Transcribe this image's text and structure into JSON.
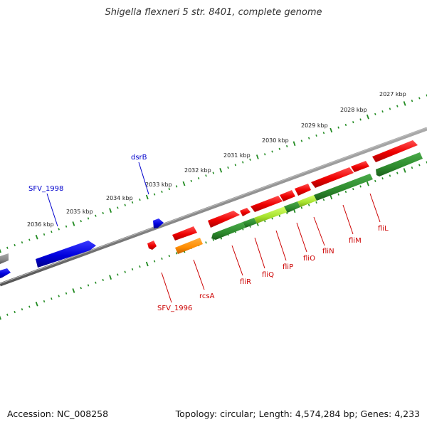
{
  "title": "Shigella flexneri 5 str. 8401, complete genome",
  "footer": {
    "accession": "Accession: NC_008258",
    "topology": "Topology: circular; Length: 4,574,284 bp; Genes: 4,233"
  },
  "colors": {
    "red": "#ee0000",
    "blue": "#0000dd",
    "orange": "#ff8c00",
    "green": "#2d8a2d",
    "lime": "#a6e22e",
    "backbone": "#808080",
    "ruler": "#228b22",
    "gene_label_red": "#cc0000",
    "gene_label_blue": "#0000cc"
  },
  "ruler_labels": [
    "2027 kbp",
    "2028 kbp",
    "2029 kbp",
    "2030 kbp",
    "2031 kbp",
    "2032 kbp",
    "2033 kbp",
    "2034 kbp",
    "2035 kbp",
    "2036 kbp"
  ],
  "gene_labels": [
    "SFV_1998",
    "dsrB",
    "SFV_1996",
    "rcsA",
    "fliR",
    "fliQ",
    "fliP",
    "fliO",
    "fliN",
    "fliM",
    "fliL"
  ]
}
